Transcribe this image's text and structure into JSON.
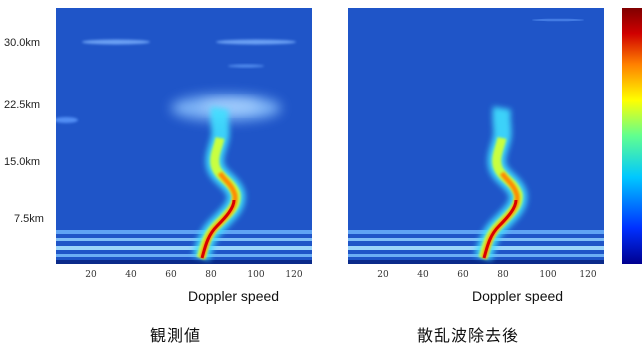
{
  "chart_data": [
    {
      "type": "heatmap",
      "caption": "観測値",
      "xlabel": "Doppler speed",
      "x_ticks": [
        "20",
        "40",
        "60",
        "80",
        "100",
        "120"
      ],
      "y_ticks": [
        "30.0km",
        "22.5km",
        "15.0km",
        "7.5km"
      ],
      "ylim_km": [
        0,
        34
      ],
      "xlim": [
        0,
        128
      ],
      "features": {
        "main_echo_trace_x": [
          70,
          72,
          76,
          82,
          86,
          84,
          80,
          78,
          82,
          84
        ],
        "main_echo_trace_km": [
          0.5,
          2,
          3.5,
          5,
          6.5,
          8,
          9.5,
          11,
          13,
          15
        ],
        "clutter_layers_km": [
          1.5,
          3,
          4.5,
          6
        ],
        "scatter_patches_km": [
          21,
          23,
          30.5
        ]
      }
    },
    {
      "type": "heatmap",
      "caption": "散乱波除去後",
      "xlabel": "Doppler speed",
      "x_ticks": [
        "20",
        "40",
        "60",
        "80",
        "100",
        "120"
      ],
      "ylim_km": [
        0,
        34
      ],
      "xlim": [
        0,
        128
      ],
      "features": {
        "main_echo_trace_x": [
          70,
          72,
          76,
          82,
          86,
          84,
          80,
          78,
          82,
          84
        ],
        "main_echo_trace_km": [
          0.5,
          2,
          3.5,
          5,
          6.5,
          8,
          9.5,
          11,
          13,
          15
        ],
        "clutter_layers_km": [
          1.5,
          3,
          4.5,
          6
        ],
        "scatter_patches_km": []
      }
    }
  ],
  "colors": {
    "background": "#1f55c8",
    "colormap": [
      "#00008f",
      "#0030ff",
      "#00c8ff",
      "#60ff90",
      "#ffff00",
      "#ff8000",
      "#d00000",
      "#800000"
    ]
  }
}
